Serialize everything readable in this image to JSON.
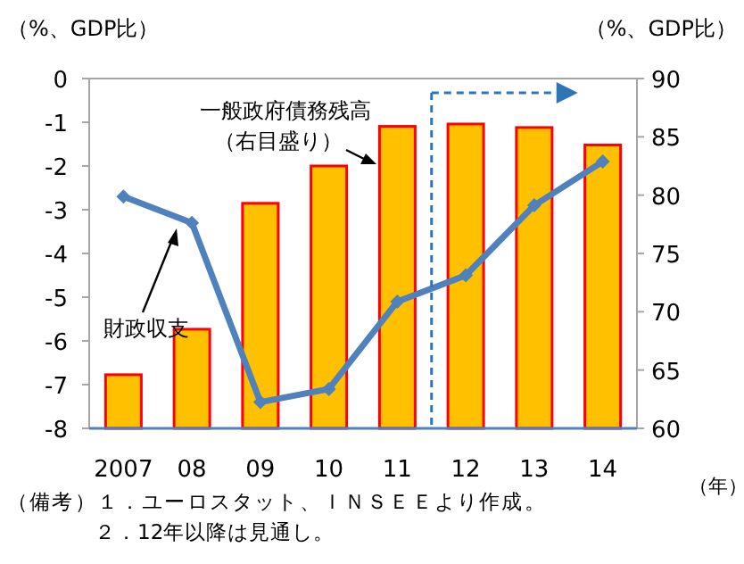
{
  "chart_data": {
    "type": "bar",
    "categories": [
      "2007",
      "08",
      "09",
      "10",
      "11",
      "12",
      "13",
      "14"
    ],
    "series": [
      {
        "name": "一般政府債務残高",
        "axis": "y2",
        "color": "#ffc000",
        "values": [
          64.6,
          68.5,
          79.3,
          82.5,
          85.9,
          86.1,
          85.8,
          84.3
        ]
      },
      {
        "name": "財政収支",
        "type": "line",
        "color": "#4f81bd",
        "marker": "diamond",
        "values": [
          -2.7,
          -3.3,
          -7.4,
          -7.1,
          -5.1,
          -4.5,
          -2.9,
          -1.9
        ]
      }
    ],
    "ylabel": "（%、GDP比）",
    "y2label": "（%、GDP比）",
    "xlabel": "（年）",
    "ylim": [
      -8,
      0
    ],
    "yticks": [
      -8,
      -7,
      -6,
      -5,
      -4,
      -3,
      -2,
      -1,
      0
    ],
    "y2lim": [
      60,
      90
    ],
    "y2ticks": [
      60,
      65,
      70,
      75,
      80,
      85,
      90
    ],
    "ref_lines": [
      {
        "axis": "x",
        "value": "12",
        "color": "#2e75b6",
        "line_style": "dashed"
      }
    ],
    "annotations": [
      "（右目盛り）",
      "（備考）１．ユーロスタット、ＩＮＳＥＥより作成。",
      "２．12年以降は見通し。"
    ],
    "grid": false
  }
}
